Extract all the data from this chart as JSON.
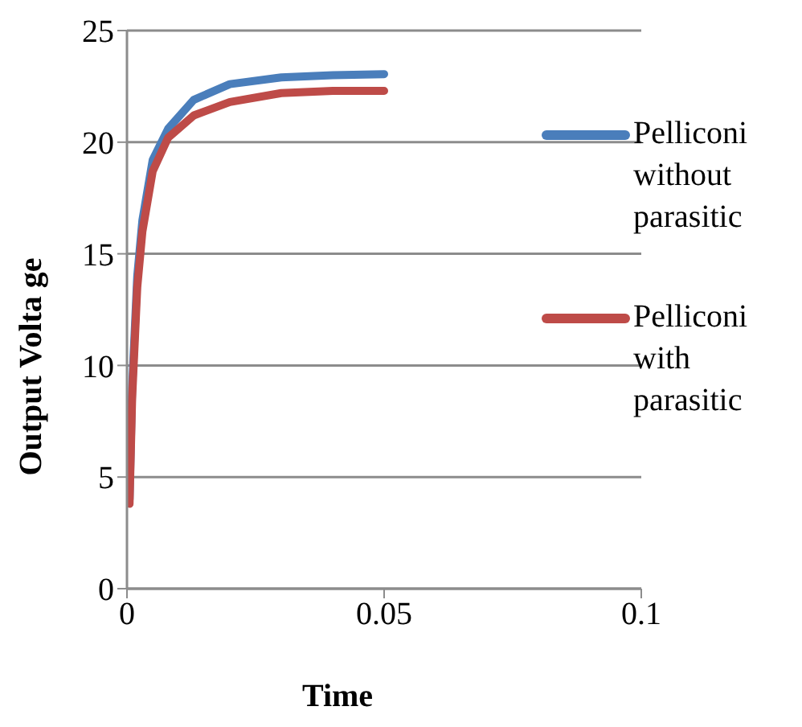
{
  "chart_data": {
    "type": "line",
    "xlabel": "Time",
    "ylabel": "Output Volta ge",
    "x": [
      0.0005,
      0.001,
      0.002,
      0.003,
      0.005,
      0.008,
      0.013,
      0.02,
      0.03,
      0.04,
      0.05
    ],
    "series": [
      {
        "name": "Pelliconi without parasitic",
        "color": "#4a7ebb",
        "values": [
          4,
          9,
          14,
          16.5,
          19.2,
          20.6,
          21.9,
          22.6,
          22.9,
          23.0,
          23.05
        ]
      },
      {
        "name": "Pelliconi with parasitic",
        "color": "#be4b48",
        "values": [
          3.8,
          8.5,
          13.5,
          16,
          18.7,
          20.2,
          21.2,
          21.8,
          22.2,
          22.3,
          22.3
        ]
      }
    ],
    "xlim": [
      0,
      0.1
    ],
    "xticks": [
      0,
      0.05,
      0.1
    ],
    "ylim": [
      0,
      25
    ],
    "yticks": [
      0,
      5,
      10,
      15,
      20,
      25
    ],
    "grid": "y",
    "legend": "right",
    "marker": "none",
    "line_style": "solid"
  }
}
